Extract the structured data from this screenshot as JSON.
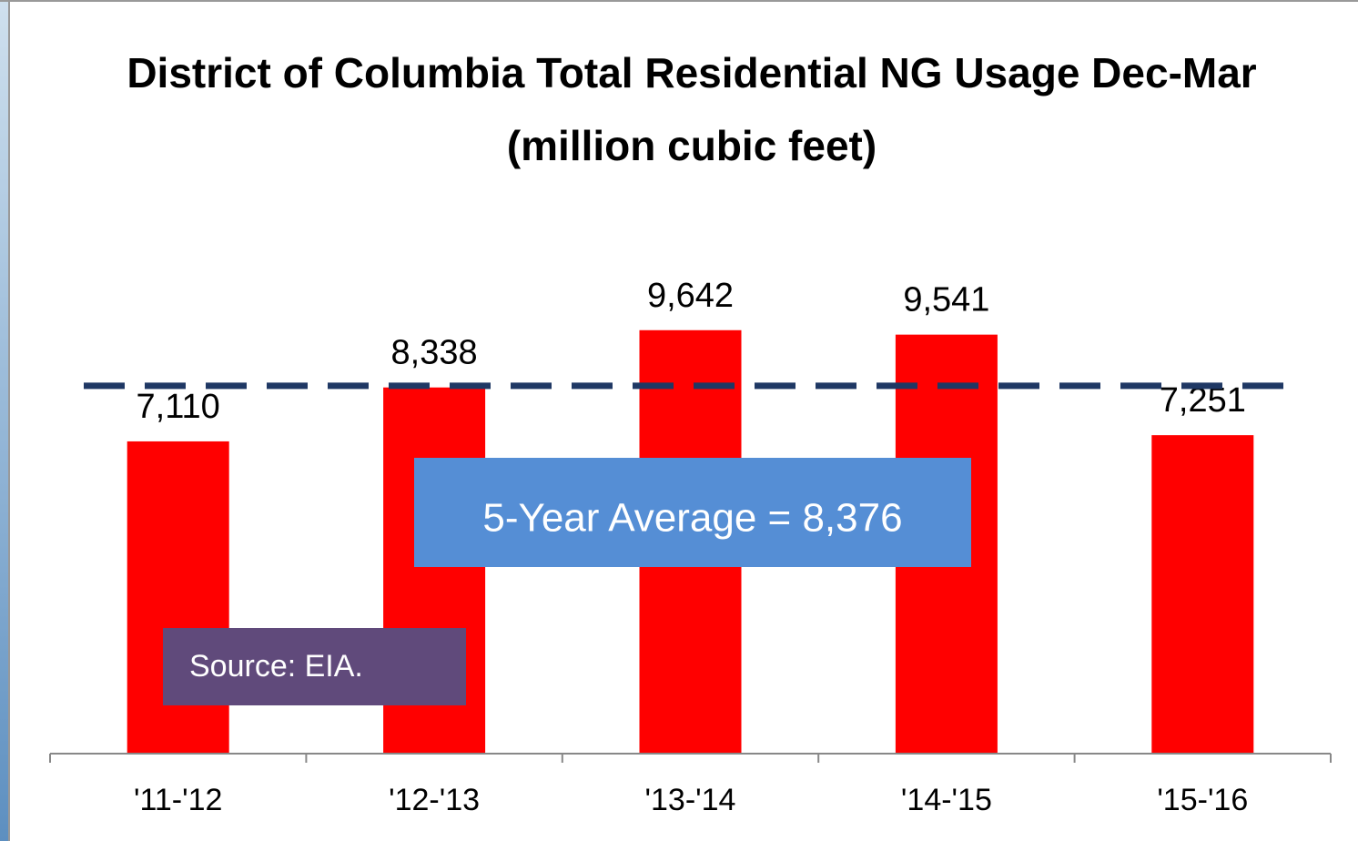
{
  "chart_data": {
    "type": "bar",
    "title": "District of Columbia Total Residential NG Usage Dec-Mar (million cubic feet)",
    "categories": [
      "'11-'12",
      "'12-'13",
      "'13-'14",
      "'14-'15",
      "'15-'16"
    ],
    "values": [
      7110,
      8338,
      9642,
      9541,
      7251
    ],
    "value_labels": [
      "7,110",
      "8,338",
      "9,642",
      "9,541",
      "7,251"
    ],
    "color": "#ff0000",
    "ylim": [
      0,
      12000
    ],
    "average": {
      "value": 8376,
      "label": "5-Year Average = 8,376"
    },
    "source": "Source: EIA."
  }
}
